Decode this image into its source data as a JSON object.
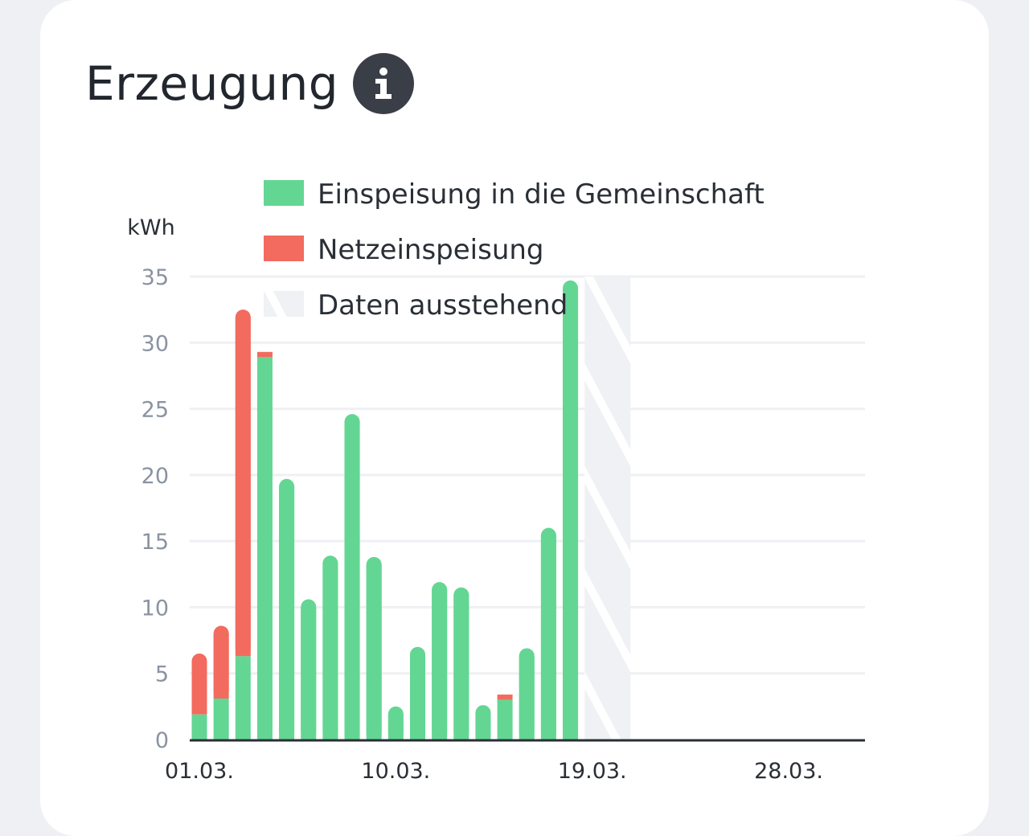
{
  "header": {
    "title": "Erzeugung",
    "info_icon": "info-icon"
  },
  "colors": {
    "community": "#63d693",
    "grid": "#f26b5e",
    "pending": "#e9ecf0",
    "gridline": "#eef0f3",
    "axis": "#2a2f36"
  },
  "chart_data": {
    "type": "bar",
    "stacked": true,
    "unit_label": "kWh",
    "ylim": [
      0,
      35
    ],
    "yticks": [
      0,
      5,
      10,
      15,
      20,
      25,
      30,
      35
    ],
    "x": [
      "01.03.",
      "02.03.",
      "03.03.",
      "04.03.",
      "05.03.",
      "06.03.",
      "07.03.",
      "08.03.",
      "09.03.",
      "10.03.",
      "11.03.",
      "12.03.",
      "13.03.",
      "14.03.",
      "15.03.",
      "16.03.",
      "17.03.",
      "18.03.",
      "19.03.",
      "20.03.",
      "21.03.",
      "22.03.",
      "23.03.",
      "24.03.",
      "25.03.",
      "26.03.",
      "27.03.",
      "28.03.",
      "29.03.",
      "30.03.",
      "31.03."
    ],
    "xtick_labels": [
      "01.03.",
      "10.03.",
      "19.03.",
      "28.03."
    ],
    "xtick_indices": [
      0,
      9,
      18,
      27
    ],
    "series": [
      {
        "name": "Einspeisung in die Gemeinschaft",
        "color": "#63d693",
        "values": [
          1.9,
          3.1,
          6.3,
          28.9,
          19.7,
          10.6,
          13.9,
          24.6,
          13.8,
          2.5,
          7.0,
          11.9,
          11.5,
          2.6,
          3.0,
          6.9,
          16.0,
          34.7,
          null,
          null,
          null,
          null,
          null,
          null,
          null,
          null,
          null,
          null,
          null,
          null,
          null
        ]
      },
      {
        "name": "Netzeinspeisung",
        "color": "#f26b5e",
        "values": [
          4.6,
          5.5,
          26.2,
          0.4,
          0,
          0,
          0,
          0,
          0,
          0,
          0,
          0,
          0,
          0,
          0.4,
          0,
          0,
          0,
          null,
          null,
          null,
          null,
          null,
          null,
          null,
          null,
          null,
          null,
          null,
          null,
          null
        ]
      }
    ],
    "pending": {
      "name": "Daten ausstehend",
      "from_index": 18,
      "to_index": 19
    },
    "grid": true,
    "legend_position": "top"
  }
}
